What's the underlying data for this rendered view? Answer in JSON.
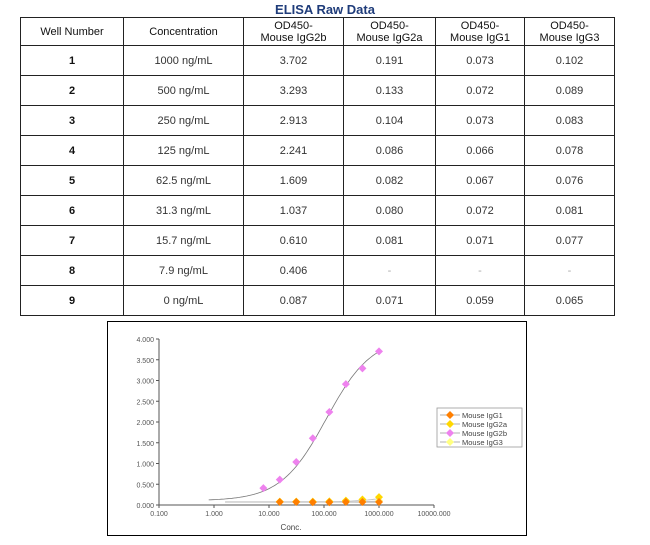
{
  "title": "ELISA Raw Data",
  "table": {
    "headers": [
      "Well Number",
      "Concentration",
      "OD450-\nMouse IgG2b",
      "OD450-\nMouse IgG2a",
      "OD450-\nMouse IgG1",
      "OD450-\nMouse IgG3"
    ],
    "header_lines": [
      [
        "Well Number",
        ""
      ],
      [
        "Concentration",
        ""
      ],
      [
        "OD450-",
        "Mouse IgG2b"
      ],
      [
        "OD450-",
        "Mouse IgG2a"
      ],
      [
        "OD450-",
        "Mouse IgG1"
      ],
      [
        "OD450-",
        "Mouse IgG3"
      ]
    ],
    "rows": [
      [
        "1",
        "1000 ng/mL",
        "3.702",
        "0.191",
        "0.073",
        "0.102"
      ],
      [
        "2",
        "500 ng/mL",
        "3.293",
        "0.133",
        "0.072",
        "0.089"
      ],
      [
        "3",
        "250 ng/mL",
        "2.913",
        "0.104",
        "0.073",
        "0.083"
      ],
      [
        "4",
        "125 ng/mL",
        "2.241",
        "0.086",
        "0.066",
        "0.078"
      ],
      [
        "5",
        "62.5 ng/mL",
        "1.609",
        "0.082",
        "0.067",
        "0.076"
      ],
      [
        "6",
        "31.3 ng/mL",
        "1.037",
        "0.080",
        "0.072",
        "0.081"
      ],
      [
        "7",
        "15.7 ng/mL",
        "0.610",
        "0.081",
        "0.071",
        "0.077"
      ],
      [
        "8",
        "7.9 ng/mL",
        "0.406",
        "-",
        "-",
        "-"
      ],
      [
        "9",
        "0 ng/mL",
        "0.087",
        "0.071",
        "0.059",
        "0.065"
      ]
    ]
  },
  "chart_data": {
    "type": "scatter",
    "title": "",
    "xlabel": "Conc.",
    "ylabel": "",
    "xscale": "log",
    "xlim": [
      0.1,
      10000
    ],
    "ylim": [
      0,
      4
    ],
    "x_ticks": [
      "0.100",
      "1.000",
      "10.000",
      "100.000",
      "1000.000",
      "10000.000"
    ],
    "y_ticks": [
      "0.000",
      "0.500",
      "1.000",
      "1.500",
      "2.000",
      "2.500",
      "3.000",
      "3.500",
      "4.000"
    ],
    "grid": false,
    "legend_position": "right",
    "x": [
      1000,
      500,
      250,
      125,
      62.5,
      31.3,
      15.7,
      7.9
    ],
    "series": [
      {
        "name": "Mouse IgG1",
        "color": "#ff7f00",
        "x": [
          1000,
          500,
          250,
          125,
          62.5,
          31.3,
          15.7
        ],
        "values": [
          0.073,
          0.072,
          0.073,
          0.066,
          0.067,
          0.072,
          0.071
        ]
      },
      {
        "name": "Mouse IgG2a",
        "color": "#ffd700",
        "x": [
          1000,
          500,
          250,
          125,
          62.5,
          31.3,
          15.7
        ],
        "values": [
          0.191,
          0.133,
          0.104,
          0.086,
          0.082,
          0.08,
          0.081
        ]
      },
      {
        "name": "Mouse IgG2b",
        "color": "#ee82ee",
        "x": [
          1000,
          500,
          250,
          125,
          62.5,
          31.3,
          15.7,
          7.9
        ],
        "values": [
          3.702,
          3.293,
          2.913,
          2.241,
          1.609,
          1.037,
          0.61,
          0.406
        ]
      },
      {
        "name": "Mouse IgG3",
        "color": "#ffff80",
        "x": [
          1000,
          500,
          250,
          125,
          62.5,
          31.3,
          15.7
        ],
        "values": [
          0.102,
          0.089,
          0.083,
          0.078,
          0.076,
          0.081,
          0.077
        ]
      }
    ],
    "fit_curve": "4-parameter logistic fit lines drawn for each series"
  }
}
